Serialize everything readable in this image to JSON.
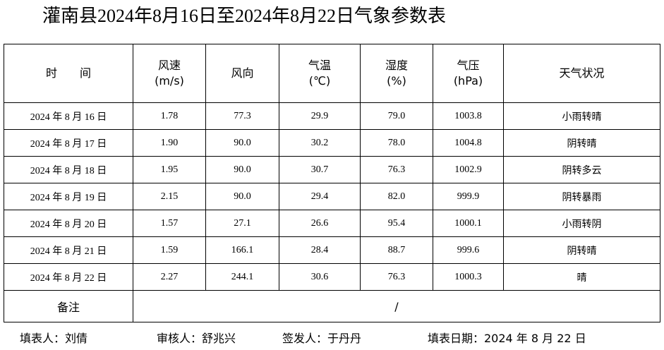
{
  "header": {
    "title": "灌南县2024年8月16日至2024年8月22日气象参数表"
  },
  "table": {
    "columns": [
      [
        "时　　间"
      ],
      [
        "风速",
        "(m/s)"
      ],
      [
        "风向"
      ],
      [
        "气温",
        "(℃)"
      ],
      [
        "湿度",
        "(%)"
      ],
      [
        "气压",
        "(hPa)"
      ],
      [
        "天气状况"
      ]
    ],
    "rows": [
      [
        "2024 年 8 月 16 日",
        "1.78",
        "77.3",
        "29.9",
        "79.0",
        "1003.8",
        "小雨转晴"
      ],
      [
        "2024 年 8 月 17 日",
        "1.90",
        "90.0",
        "30.2",
        "78.0",
        "1004.8",
        "阴转晴"
      ],
      [
        "2024 年 8 月 18 日",
        "1.95",
        "90.0",
        "30.7",
        "76.3",
        "1002.9",
        "阴转多云"
      ],
      [
        "2024 年 8 月 19 日",
        "2.15",
        "90.0",
        "29.4",
        "82.0",
        "999.9",
        "阴转暴雨"
      ],
      [
        "2024 年 8 月 20 日",
        "1.57",
        "27.1",
        "26.6",
        "95.4",
        "1000.1",
        "小雨转阴"
      ],
      [
        "2024 年 8 月 21 日",
        "1.59",
        "166.1",
        "28.4",
        "88.7",
        "999.6",
        "阴转晴"
      ],
      [
        "2024 年 8 月 22 日",
        "2.27",
        "244.1",
        "30.6",
        "76.3",
        "1000.3",
        "晴"
      ]
    ],
    "remarks": {
      "label": "备注",
      "value": "/"
    }
  },
  "footer": {
    "filler": "填表人：刘倩",
    "reviewer": "审核人：舒兆兴",
    "issuer": "签发人：于丹丹",
    "date": "填表日期：2024 年 8 月 22 日"
  }
}
